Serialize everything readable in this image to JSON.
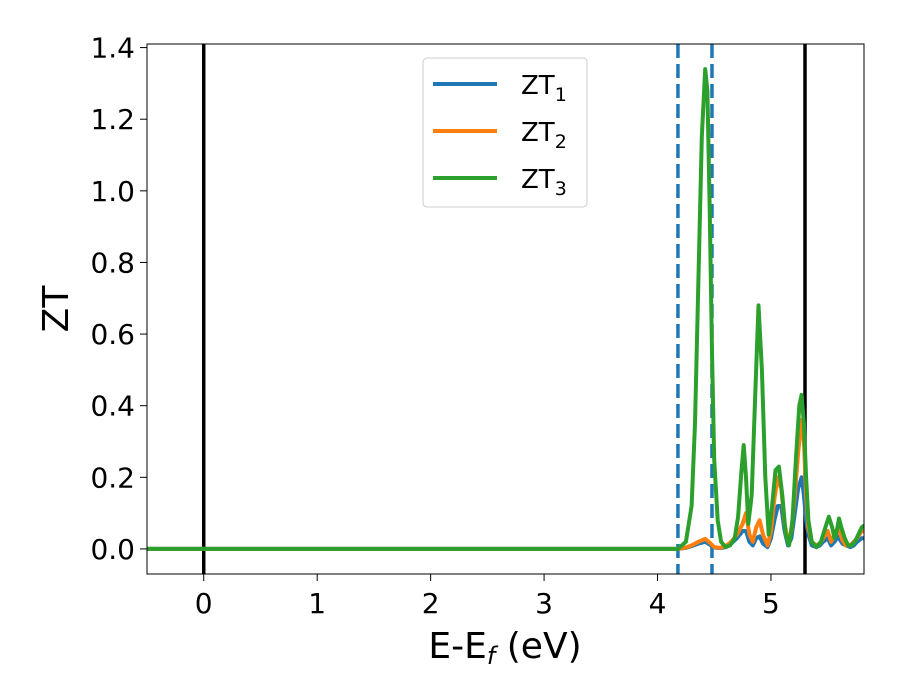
{
  "chart_data": {
    "type": "line",
    "xlabel": "E-E",
    "xlabel_sub": "f",
    "xlabel_unit": " (eV)",
    "ylabel": "ZT",
    "xlim": [
      -0.5,
      5.82
    ],
    "ylim": [
      -0.07,
      1.41
    ],
    "xticks": [
      0,
      1,
      2,
      3,
      4,
      5
    ],
    "yticks": [
      0.0,
      0.2,
      0.4,
      0.6,
      0.8,
      1.0,
      1.2,
      1.4
    ],
    "xtick_labels": [
      "0",
      "1",
      "2",
      "3",
      "4",
      "5"
    ],
    "ytick_labels": [
      "0.0",
      "0.2",
      "0.4",
      "0.6",
      "0.8",
      "1.0",
      "1.2",
      "1.4"
    ],
    "grid": false,
    "legend_position": "top-center",
    "vlines": [
      {
        "x": 0.0,
        "style": "solid",
        "color": "#000000"
      },
      {
        "x": 5.3,
        "style": "solid",
        "color": "#000000"
      },
      {
        "x": 4.18,
        "style": "dashed",
        "color": "#1f77b4"
      },
      {
        "x": 4.48,
        "style": "dashed",
        "color": "#1f77b4"
      }
    ],
    "series": [
      {
        "name": "ZT",
        "sub": "1",
        "color": "#1f77b4",
        "x": [
          -0.5,
          4.18,
          4.25,
          4.3,
          4.36,
          4.42,
          4.46,
          4.5,
          4.55,
          4.6,
          4.65,
          4.7,
          4.75,
          4.78,
          4.81,
          4.84,
          4.87,
          4.9,
          4.93,
          4.97,
          5.0,
          5.03,
          5.06,
          5.09,
          5.12,
          5.15,
          5.18,
          5.21,
          5.24,
          5.27,
          5.29,
          5.31,
          5.33,
          5.36,
          5.4,
          5.43,
          5.46,
          5.5,
          5.53,
          5.56,
          5.59,
          5.63,
          5.66,
          5.7,
          5.73,
          5.76,
          5.8,
          5.82
        ],
        "y": [
          0.0,
          0.0,
          0.003,
          0.008,
          0.015,
          0.02,
          0.012,
          0.004,
          0.002,
          0.005,
          0.015,
          0.03,
          0.05,
          0.05,
          0.02,
          0.01,
          0.03,
          0.035,
          0.015,
          0.005,
          0.03,
          0.08,
          0.12,
          0.12,
          0.05,
          0.01,
          0.03,
          0.1,
          0.17,
          0.2,
          0.15,
          0.08,
          0.04,
          0.01,
          0.005,
          0.01,
          0.02,
          0.03,
          0.01,
          0.02,
          0.035,
          0.015,
          0.01,
          0.005,
          0.01,
          0.02,
          0.03,
          0.03
        ]
      },
      {
        "name": "ZT",
        "sub": "2",
        "color": "#ff7f0e",
        "x": [
          -0.5,
          4.18,
          4.25,
          4.3,
          4.36,
          4.42,
          4.46,
          4.5,
          4.55,
          4.6,
          4.65,
          4.7,
          4.75,
          4.78,
          4.81,
          4.84,
          4.87,
          4.9,
          4.93,
          4.97,
          5.0,
          5.03,
          5.06,
          5.09,
          5.12,
          5.15,
          5.18,
          5.21,
          5.24,
          5.27,
          5.29,
          5.31,
          5.33,
          5.36,
          5.4,
          5.43,
          5.46,
          5.5,
          5.53,
          5.56,
          5.59,
          5.63,
          5.66,
          5.7,
          5.73,
          5.76,
          5.8,
          5.82
        ],
        "y": [
          0.0,
          0.0,
          0.004,
          0.01,
          0.02,
          0.028,
          0.018,
          0.005,
          0.003,
          0.008,
          0.02,
          0.04,
          0.07,
          0.1,
          0.04,
          0.02,
          0.06,
          0.08,
          0.04,
          0.01,
          0.05,
          0.14,
          0.2,
          0.17,
          0.07,
          0.02,
          0.05,
          0.15,
          0.27,
          0.36,
          0.3,
          0.15,
          0.06,
          0.02,
          0.01,
          0.015,
          0.03,
          0.05,
          0.02,
          0.04,
          0.06,
          0.025,
          0.01,
          0.01,
          0.02,
          0.03,
          0.05,
          0.05
        ]
      },
      {
        "name": "ZT",
        "sub": "3",
        "color": "#2ca02c",
        "x": [
          -0.5,
          4.18,
          4.25,
          4.3,
          4.33,
          4.36,
          4.39,
          4.42,
          4.44,
          4.46,
          4.48,
          4.5,
          4.53,
          4.56,
          4.6,
          4.64,
          4.68,
          4.71,
          4.74,
          4.76,
          4.78,
          4.8,
          4.83,
          4.86,
          4.89,
          4.92,
          4.95,
          4.98,
          5.01,
          5.04,
          5.07,
          5.1,
          5.13,
          5.16,
          5.19,
          5.22,
          5.25,
          5.27,
          5.29,
          5.31,
          5.33,
          5.36,
          5.4,
          5.44,
          5.48,
          5.51,
          5.54,
          5.56,
          5.58,
          5.6,
          5.62,
          5.65,
          5.68,
          5.71,
          5.74,
          5.77,
          5.8,
          5.82
        ],
        "y": [
          0.0,
          0.0,
          0.02,
          0.12,
          0.35,
          0.75,
          1.15,
          1.34,
          1.28,
          0.95,
          0.55,
          0.25,
          0.08,
          0.02,
          0.005,
          0.01,
          0.03,
          0.09,
          0.22,
          0.29,
          0.2,
          0.07,
          0.15,
          0.42,
          0.68,
          0.5,
          0.2,
          0.04,
          0.12,
          0.22,
          0.23,
          0.15,
          0.04,
          0.01,
          0.08,
          0.25,
          0.4,
          0.43,
          0.35,
          0.2,
          0.08,
          0.02,
          0.005,
          0.02,
          0.06,
          0.09,
          0.06,
          0.03,
          0.05,
          0.085,
          0.06,
          0.03,
          0.01,
          0.01,
          0.02,
          0.04,
          0.06,
          0.065
        ]
      }
    ]
  }
}
